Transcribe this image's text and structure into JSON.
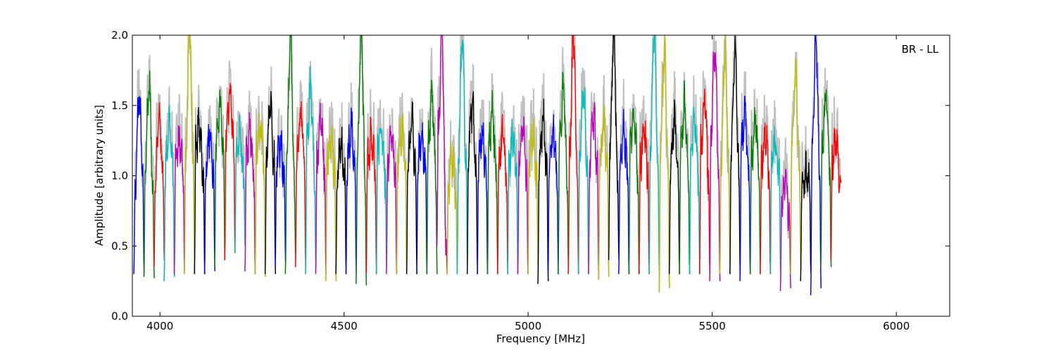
{
  "chart_data": {
    "type": "line",
    "title": "",
    "annotation": "BR - LL",
    "xlabel": "Frequency [MHz]",
    "ylabel": "Amplitude [arbitrary units]",
    "xlim": [
      3925,
      6145
    ],
    "ylim": [
      0.0,
      2.0
    ],
    "xticks": [
      4000,
      4500,
      5000,
      5500,
      6000
    ],
    "yticks": [
      0.0,
      0.5,
      1.0,
      1.5,
      2.0
    ],
    "xtick_labels": [
      "4000",
      "4500",
      "5000",
      "5500",
      "6000"
    ],
    "ytick_labels": [
      "0.0",
      "0.5",
      "1.0",
      "1.5",
      "2.0"
    ],
    "grid": false,
    "background_color": "#c0c0c0",
    "channel_width_mhz": 28,
    "color_cycle": [
      "#0000ff",
      "#008000",
      "#ff0000",
      "#00bfbf",
      "#bf00bf",
      "#bfbf00",
      "#000000"
    ],
    "series": [
      {
        "color": "#0000ff",
        "values": [
          0.3,
          0.9,
          1.55,
          1.0,
          0.3
        ]
      },
      {
        "color": "#008000",
        "values": [
          0.28,
          1.1,
          1.65,
          0.9,
          0.27
        ]
      },
      {
        "color": "#ff0000",
        "values": [
          0.35,
          1.0,
          1.42,
          1.0,
          0.4
        ]
      },
      {
        "color": "#00bfbf",
        "values": [
          0.25,
          1.05,
          1.38,
          1.0,
          0.28
        ]
      },
      {
        "color": "#bf00bf",
        "values": [
          0.3,
          1.1,
          1.25,
          1.05,
          0.32
        ]
      },
      {
        "color": "#bfbf00",
        "values": [
          0.3,
          1.1,
          2.0,
          1.1,
          0.3
        ]
      },
      {
        "color": "#000000",
        "values": [
          0.3,
          1.2,
          1.35,
          1.0,
          0.3
        ]
      },
      {
        "color": "#0000ff",
        "values": [
          0.3,
          1.1,
          1.3,
          1.0,
          0.32
        ]
      },
      {
        "color": "#008000",
        "values": [
          0.35,
          1.2,
          1.5,
          1.1,
          0.4
        ]
      },
      {
        "color": "#ff0000",
        "values": [
          0.4,
          1.3,
          1.6,
          1.2,
          0.45
        ]
      },
      {
        "color": "#00bfbf",
        "values": [
          0.45,
          1.1,
          1.3,
          0.95,
          0.5
        ]
      },
      {
        "color": "#bf00bf",
        "values": [
          0.32,
          1.1,
          1.3,
          1.0,
          0.3
        ]
      },
      {
        "color": "#bfbf00",
        "values": [
          0.3,
          1.15,
          1.32,
          1.05,
          0.28
        ]
      },
      {
        "color": "#000000",
        "values": [
          0.3,
          1.2,
          1.53,
          1.1,
          0.3
        ]
      },
      {
        "color": "#0000ff",
        "values": [
          0.35,
          1.1,
          1.25,
          1.0,
          0.38
        ]
      },
      {
        "color": "#008000",
        "values": [
          0.3,
          1.1,
          2.0,
          0.9,
          0.4
        ]
      },
      {
        "color": "#ff0000",
        "values": [
          0.35,
          1.15,
          1.47,
          1.05,
          0.35
        ]
      },
      {
        "color": "#00bfbf",
        "values": [
          0.3,
          1.2,
          1.63,
          1.0,
          0.34
        ]
      },
      {
        "color": "#bf00bf",
        "values": [
          0.3,
          1.1,
          1.4,
          1.05,
          0.3
        ]
      },
      {
        "color": "#bfbf00",
        "values": [
          0.25,
          1.1,
          1.3,
          1.0,
          0.25
        ]
      },
      {
        "color": "#000000",
        "values": [
          0.3,
          1.0,
          1.2,
          0.95,
          0.3
        ]
      },
      {
        "color": "#0000ff",
        "values": [
          0.3,
          1.1,
          1.35,
          1.05,
          0.3
        ]
      },
      {
        "color": "#008000",
        "values": [
          0.23,
          1.1,
          2.0,
          1.0,
          0.22
        ]
      },
      {
        "color": "#ff0000",
        "values": [
          0.3,
          1.1,
          1.3,
          1.05,
          0.3
        ]
      },
      {
        "color": "#00bfbf",
        "values": [
          0.3,
          1.15,
          1.33,
          1.0,
          0.35
        ]
      },
      {
        "color": "#bf00bf",
        "values": [
          0.3,
          1.1,
          1.25,
          1.0,
          0.3
        ]
      },
      {
        "color": "#bfbf00",
        "values": [
          0.3,
          1.1,
          1.33,
          1.0,
          0.3
        ]
      },
      {
        "color": "#000000",
        "values": [
          0.3,
          1.1,
          1.4,
          1.0,
          0.3
        ]
      },
      {
        "color": "#0000ff",
        "values": [
          0.3,
          1.1,
          1.3,
          1.0,
          0.3
        ]
      },
      {
        "color": "#008000",
        "values": [
          0.3,
          1.2,
          1.56,
          1.0,
          0.3
        ]
      },
      {
        "color": "#bf00bf",
        "values": [
          0.5,
          1.3,
          2.0,
          0.6,
          0.3
        ]
      },
      {
        "color": "#bfbf00",
        "values": [
          0.3,
          0.9,
          1.1,
          0.9,
          0.3
        ]
      },
      {
        "color": "#00bfbf",
        "values": [
          0.3,
          1.1,
          2.0,
          1.1,
          0.35
        ]
      },
      {
        "color": "#000000",
        "values": [
          0.3,
          1.2,
          1.5,
          1.0,
          0.3
        ]
      },
      {
        "color": "#0000ff",
        "values": [
          0.3,
          1.1,
          1.3,
          1.0,
          0.3
        ]
      },
      {
        "color": "#008000",
        "values": [
          0.3,
          1.2,
          1.45,
          1.0,
          0.3
        ]
      },
      {
        "color": "#ff0000",
        "values": [
          0.3,
          1.1,
          1.3,
          1.0,
          0.3
        ]
      },
      {
        "color": "#00bfbf",
        "values": [
          0.3,
          1.1,
          1.27,
          1.0,
          0.3
        ]
      },
      {
        "color": "#bf00bf",
        "values": [
          0.3,
          1.1,
          1.4,
          1.0,
          0.3
        ]
      },
      {
        "color": "#bfbf00",
        "values": [
          0.3,
          1.1,
          1.3,
          1.0,
          0.3
        ]
      },
      {
        "color": "#000000",
        "values": [
          0.23,
          1.1,
          1.4,
          1.0,
          0.25
        ]
      },
      {
        "color": "#0000ff",
        "values": [
          0.3,
          1.1,
          1.3,
          1.0,
          0.3
        ]
      },
      {
        "color": "#008000",
        "values": [
          0.3,
          1.2,
          1.6,
          1.0,
          0.35
        ]
      },
      {
        "color": "#ff0000",
        "values": [
          0.3,
          1.1,
          2.0,
          1.0,
          0.3
        ]
      },
      {
        "color": "#00bfbf",
        "values": [
          0.3,
          1.2,
          1.6,
          1.0,
          0.3
        ]
      },
      {
        "color": "#bf00bf",
        "values": [
          0.3,
          1.1,
          1.4,
          1.0,
          0.3
        ]
      },
      {
        "color": "#bfbf00",
        "values": [
          0.26,
          1.1,
          1.37,
          1.0,
          0.28
        ]
      },
      {
        "color": "#000000",
        "values": [
          0.4,
          1.2,
          2.0,
          0.9,
          0.4
        ]
      },
      {
        "color": "#0000ff",
        "values": [
          0.3,
          1.1,
          1.3,
          1.0,
          0.3
        ]
      },
      {
        "color": "#008000",
        "values": [
          0.3,
          1.2,
          1.45,
          1.0,
          0.3
        ]
      },
      {
        "color": "#ff0000",
        "values": [
          0.3,
          1.1,
          1.3,
          1.0,
          0.3
        ]
      },
      {
        "color": "#00bfbf",
        "values": [
          0.3,
          1.2,
          2.0,
          1.0,
          0.3
        ]
      },
      {
        "color": "#bfbf00",
        "values": [
          0.17,
          1.2,
          1.9,
          1.0,
          0.2
        ]
      },
      {
        "color": "#000000",
        "values": [
          0.3,
          1.1,
          1.4,
          1.0,
          0.3
        ]
      },
      {
        "color": "#008000",
        "values": [
          0.3,
          1.2,
          1.5,
          1.0,
          0.3
        ]
      },
      {
        "color": "#00bfbf",
        "values": [
          0.3,
          1.1,
          1.4,
          1.0,
          0.3
        ]
      },
      {
        "color": "#ff0000",
        "values": [
          0.3,
          1.2,
          1.6,
          1.0,
          0.3
        ]
      },
      {
        "color": "#bf00bf",
        "values": [
          0.25,
          1.3,
          1.9,
          1.0,
          0.25
        ]
      },
      {
        "color": "#bfbf00",
        "values": [
          0.3,
          1.1,
          1.9,
          1.0,
          0.3
        ]
      },
      {
        "color": "#000000",
        "values": [
          0.3,
          1.2,
          1.9,
          1.0,
          0.3
        ]
      },
      {
        "color": "#0000ff",
        "values": [
          0.25,
          1.2,
          1.45,
          1.0,
          0.3
        ]
      },
      {
        "color": "#008000",
        "values": [
          0.3,
          1.1,
          1.4,
          1.0,
          0.3
        ]
      },
      {
        "color": "#ff0000",
        "values": [
          0.3,
          1.1,
          1.3,
          1.0,
          0.3
        ]
      },
      {
        "color": "#00bfbf",
        "values": [
          0.3,
          1.1,
          1.25,
          1.0,
          0.3
        ]
      },
      {
        "color": "#bf00bf",
        "values": [
          0.18,
          0.8,
          1.0,
          0.7,
          0.2
        ]
      },
      {
        "color": "#bfbf00",
        "values": [
          0.3,
          1.2,
          1.7,
          1.0,
          0.3
        ]
      },
      {
        "color": "#000000",
        "values": [
          0.25,
          0.9,
          1.0,
          0.9,
          0.3
        ]
      },
      {
        "color": "#0000ff",
        "values": [
          0.15,
          1.1,
          2.0,
          1.0,
          0.2
        ]
      },
      {
        "color": "#008000",
        "values": [
          0.35,
          1.2,
          1.6,
          1.1,
          0.35
        ]
      },
      {
        "color": "#ff0000",
        "values": [
          0.4,
          1.1,
          1.25,
          1.0,
          0.95
        ]
      }
    ]
  }
}
